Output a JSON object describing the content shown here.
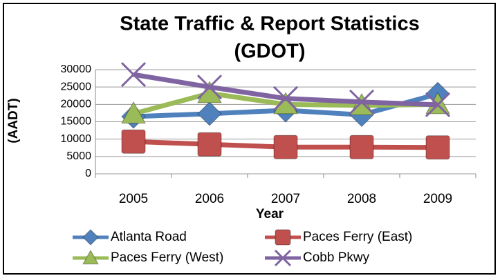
{
  "chart_data": {
    "type": "line",
    "title": [
      "State Traffic & Report Statistics",
      "(GDOT)"
    ],
    "x_label": "Year",
    "y_label": "(AADT)",
    "categories": [
      "2005",
      "2006",
      "2007",
      "2008",
      "2009"
    ],
    "series": [
      {
        "name": "Atlanta Road",
        "color": "#4f81bd",
        "marker": "diamond",
        "values": [
          16500,
          17300,
          18300,
          17000,
          23000
        ]
      },
      {
        "name": "Paces Ferry (East)",
        "color": "#c0504d",
        "marker": "square",
        "values": [
          9300,
          8500,
          7700,
          7700,
          7600
        ]
      },
      {
        "name": "Paces Ferry (West)",
        "color": "#9bbb59",
        "marker": "triangle",
        "values": [
          17300,
          23200,
          20000,
          19700,
          20000
        ]
      },
      {
        "name": "Cobb Pkwy",
        "color": "#8064a2",
        "marker": "x",
        "values": [
          28600,
          25000,
          21700,
          20700,
          19900
        ]
      }
    ],
    "ylim": [
      0,
      30000
    ],
    "yticks": [
      0,
      5000,
      10000,
      15000,
      20000,
      25000,
      30000
    ],
    "grid": true
  }
}
